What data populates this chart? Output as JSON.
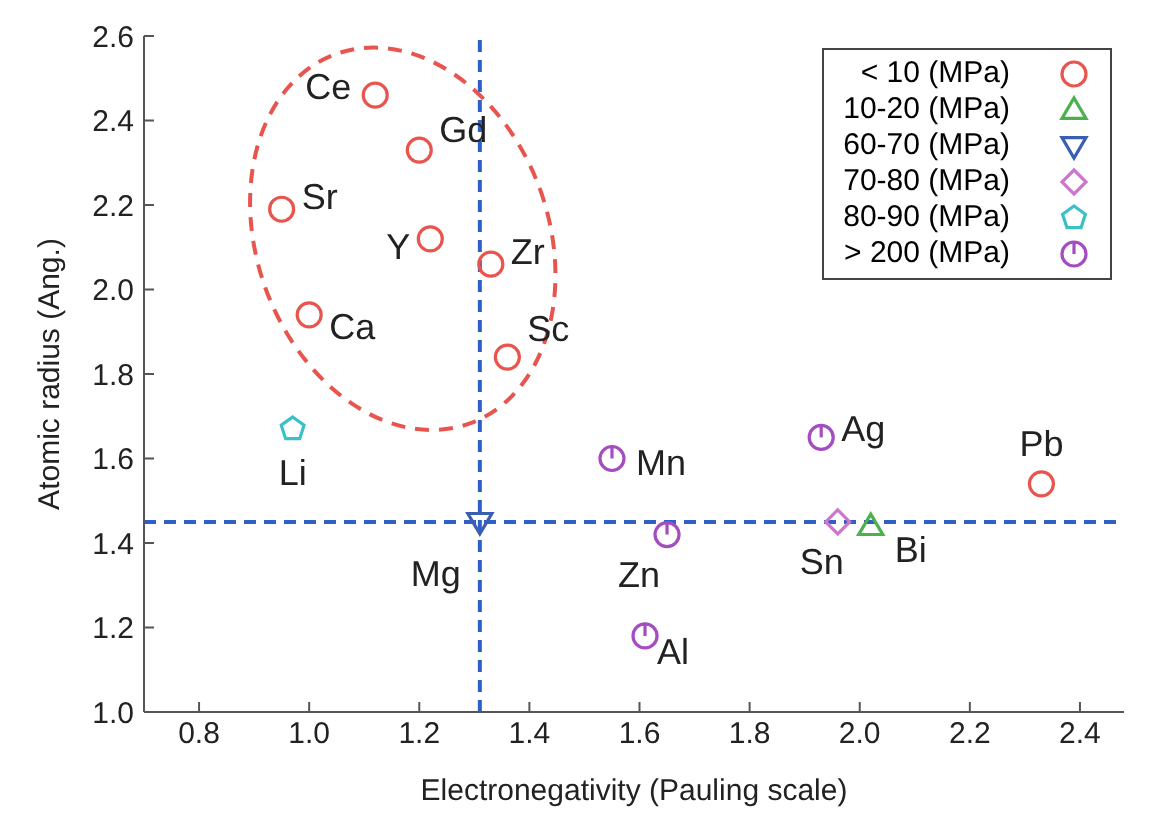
{
  "chart_data": {
    "type": "scatter",
    "xlabel": "Electronegativity (Pauling scale)",
    "ylabel": "Atomic radius (Ang.)",
    "xlim": [
      0.7,
      2.48
    ],
    "xticks": [
      {
        "value": 0.8,
        "label": "0.8"
      },
      {
        "value": 1,
        "label": "1.0"
      },
      {
        "value": 1.2,
        "label": "1.2"
      },
      {
        "value": 1.4,
        "label": "1.4"
      },
      {
        "value": 1.6,
        "label": "1.6"
      },
      {
        "value": 1.8,
        "label": "1.8"
      },
      {
        "value": 2,
        "label": "2.0"
      },
      {
        "value": 2.2,
        "label": "2.2"
      },
      {
        "value": 2.4,
        "label": "2.4"
      }
    ],
    "ylim": [
      1,
      2.6
    ],
    "yticks": [
      {
        "value": 1,
        "label": "1.0"
      },
      {
        "value": 1.2,
        "label": "1.2"
      },
      {
        "value": 1.4,
        "label": "1.4"
      },
      {
        "value": 1.6,
        "label": "1.6"
      },
      {
        "value": 1.8,
        "label": "1.8"
      },
      {
        "value": 2,
        "label": "2.0"
      },
      {
        "value": 2.2,
        "label": "2.2"
      },
      {
        "value": 2.4,
        "label": "2.4"
      },
      {
        "value": 2.6,
        "label": "2.6"
      }
    ],
    "grid": false,
    "legend": "top right",
    "series": [
      {
        "name": "< 10 (MPa)",
        "color": "#e8554e",
        "marker": "circle",
        "x": [
          1.12,
          1.2,
          0.95,
          1.22,
          1.33,
          1.0,
          1.36,
          2.33
        ],
        "values": [
          2.46,
          2.33,
          2.19,
          2.12,
          2.06,
          1.94,
          1.84,
          1.54
        ]
      },
      {
        "name": "10-20 (MPa)",
        "color": "#4cb04c",
        "marker": "triangle",
        "x": [
          2.02
        ],
        "values": [
          1.44
        ]
      },
      {
        "name": "60-70 (MPa)",
        "color": "#3a5fb0",
        "marker": "triangle-down",
        "x": [
          1.31
        ],
        "values": [
          1.45
        ]
      },
      {
        "name": "70-80 (MPa)",
        "color": "#cc77cc",
        "marker": "diamond",
        "x": [
          1.96
        ],
        "values": [
          1.45
        ]
      },
      {
        "name": "80-90 (MPa)",
        "color": "#3cc0c8",
        "x": [
          0.97
        ],
        "values": [
          1.67
        ]
      },
      {
        "name": "> 200 (MPa)",
        "color": "#a44cc0",
        "marker": "circle-tick",
        "x": [
          1.55,
          1.93,
          1.65,
          1.61
        ],
        "values": [
          1.6,
          1.65,
          1.42,
          1.18
        ]
      }
    ],
    "ref_lines": [
      {
        "axis": "x",
        "value": 1.31,
        "color": "#2f5fc8",
        "line_style": "dashed"
      },
      {
        "axis": "y",
        "value": 1.45,
        "color": "#2f5fc8",
        "line_style": "dashed"
      }
    ],
    "annotations": [
      {
        "text": "Ce",
        "x": 1.12,
        "y": 2.46
      },
      {
        "text": "Gd",
        "x": 1.2,
        "y": 2.33
      },
      {
        "text": "Sr",
        "x": 0.95,
        "y": 2.19
      },
      {
        "text": "Y",
        "x": 1.22,
        "y": 2.12
      },
      {
        "text": "Zr",
        "x": 1.33,
        "y": 2.06
      },
      {
        "text": "Ca",
        "x": 1.0,
        "y": 1.94
      },
      {
        "text": "Sc",
        "x": 1.36,
        "y": 1.84
      },
      {
        "text": "Pb",
        "x": 2.33,
        "y": 1.54
      },
      {
        "text": "Bi",
        "x": 2.02,
        "y": 1.44
      },
      {
        "text": "Mg",
        "x": 1.31,
        "y": 1.45
      },
      {
        "text": "Sn",
        "x": 1.96,
        "y": 1.45
      },
      {
        "text": "Li",
        "x": 0.97,
        "y": 1.67
      },
      {
        "text": "Mn",
        "x": 1.55,
        "y": 1.6
      },
      {
        "text": "Ag",
        "x": 1.93,
        "y": 1.65
      },
      {
        "text": "Zn",
        "x": 1.65,
        "y": 1.42
      },
      {
        "text": "Al",
        "x": 1.61,
        "y": 1.18
      }
    ]
  }
}
